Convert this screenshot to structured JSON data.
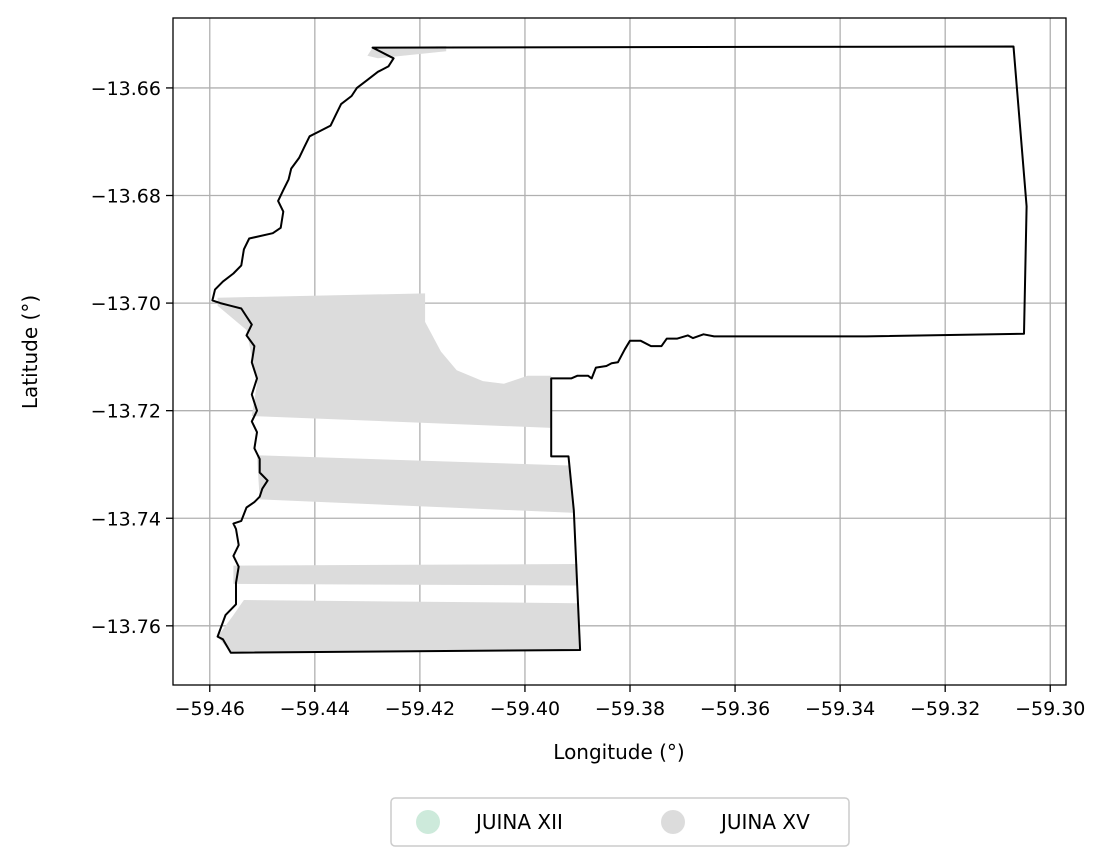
{
  "chart_data": {
    "type": "map",
    "xlabel": "Longitude (°)",
    "ylabel": "Latitude (°)",
    "xlim": [
      -59.467,
      -59.297
    ],
    "ylim": [
      -13.771,
      -13.647
    ],
    "x_ticks": [
      -59.46,
      -59.44,
      -59.42,
      -59.4,
      -59.38,
      -59.36,
      -59.34,
      -59.32,
      -59.3
    ],
    "x_tick_labels": [
      "−59.46",
      "−59.44",
      "−59.42",
      "−59.40",
      "−59.38",
      "−59.36",
      "−59.34",
      "−59.32",
      "−59.30"
    ],
    "y_ticks": [
      -13.66,
      -13.68,
      -13.7,
      -13.72,
      -13.74,
      -13.76
    ],
    "y_tick_labels": [
      "−13.66",
      "−13.68",
      "−13.70",
      "−13.72",
      "−13.74",
      "−13.76"
    ],
    "grid": true,
    "legend_position": "bottom-center",
    "legend": [
      {
        "label": "JUINA XII",
        "color": "#cdeadb"
      },
      {
        "label": "JUINA XV",
        "color": "#dcdcdc"
      }
    ],
    "boundary_color": "#000000",
    "boundary": [
      [
        -59.429,
        -13.6525
      ],
      [
        -59.307,
        -13.6523
      ],
      [
        -59.3045,
        -13.682
      ],
      [
        -59.305,
        -13.7057
      ],
      [
        -59.335,
        -13.7062
      ],
      [
        -59.364,
        -13.7062
      ],
      [
        -59.366,
        -13.7058
      ],
      [
        -59.368,
        -13.7065
      ],
      [
        -59.369,
        -13.706
      ],
      [
        -59.371,
        -13.7066
      ],
      [
        -59.373,
        -13.7066
      ],
      [
        -59.374,
        -13.708
      ],
      [
        -59.376,
        -13.708
      ],
      [
        -59.378,
        -13.707
      ],
      [
        -59.38,
        -13.707
      ],
      [
        -59.381,
        -13.7086
      ],
      [
        -59.3823,
        -13.711
      ],
      [
        -59.3835,
        -13.7112
      ],
      [
        -59.3845,
        -13.7117
      ],
      [
        -59.3865,
        -13.712
      ],
      [
        -59.3873,
        -13.714
      ],
      [
        -59.388,
        -13.7135
      ],
      [
        -59.39,
        -13.7135
      ],
      [
        -59.3912,
        -13.714
      ],
      [
        -59.393,
        -13.714
      ],
      [
        -59.395,
        -13.714
      ],
      [
        -59.395,
        -13.7285
      ],
      [
        -59.3917,
        -13.7285
      ],
      [
        -59.3907,
        -13.7385
      ],
      [
        -59.3895,
        -13.7645
      ],
      [
        -59.456,
        -13.765
      ],
      [
        -59.4575,
        -13.7625
      ],
      [
        -59.4585,
        -13.762
      ],
      [
        -59.457,
        -13.758
      ],
      [
        -59.455,
        -13.756
      ],
      [
        -59.455,
        -13.752
      ],
      [
        -59.4545,
        -13.749
      ],
      [
        -59.4555,
        -13.747
      ],
      [
        -59.4545,
        -13.745
      ],
      [
        -59.455,
        -13.742
      ],
      [
        -59.4555,
        -13.741
      ],
      [
        -59.454,
        -13.7405
      ],
      [
        -59.453,
        -13.738
      ],
      [
        -59.4515,
        -13.737
      ],
      [
        -59.4505,
        -13.736
      ],
      [
        -59.45,
        -13.7345
      ],
      [
        -59.449,
        -13.733
      ],
      [
        -59.4505,
        -13.7315
      ],
      [
        -59.4505,
        -13.729
      ],
      [
        -59.4515,
        -13.727
      ],
      [
        -59.451,
        -13.724
      ],
      [
        -59.452,
        -13.722
      ],
      [
        -59.451,
        -13.72
      ],
      [
        -59.452,
        -13.717
      ],
      [
        -59.451,
        -13.714
      ],
      [
        -59.452,
        -13.711
      ],
      [
        -59.4515,
        -13.708
      ],
      [
        -59.453,
        -13.706
      ],
      [
        -59.452,
        -13.704
      ],
      [
        -59.453,
        -13.7025
      ],
      [
        -59.454,
        -13.701
      ],
      [
        -59.456,
        -13.7005
      ],
      [
        -59.458,
        -13.7
      ],
      [
        -59.4595,
        -13.6995
      ],
      [
        -59.459,
        -13.6975
      ],
      [
        -59.4575,
        -13.696
      ],
      [
        -59.4555,
        -13.6945
      ],
      [
        -59.454,
        -13.693
      ],
      [
        -59.4535,
        -13.69
      ],
      [
        -59.4525,
        -13.688
      ],
      [
        -59.448,
        -13.687
      ],
      [
        -59.4465,
        -13.686
      ],
      [
        -59.446,
        -13.683
      ],
      [
        -59.447,
        -13.681
      ],
      [
        -59.446,
        -13.679
      ],
      [
        -59.445,
        -13.677
      ],
      [
        -59.4445,
        -13.675
      ],
      [
        -59.443,
        -13.673
      ],
      [
        -59.442,
        -13.671
      ],
      [
        -59.441,
        -13.669
      ],
      [
        -59.439,
        -13.668
      ],
      [
        -59.437,
        -13.667
      ],
      [
        -59.436,
        -13.665
      ],
      [
        -59.435,
        -13.663
      ],
      [
        -59.433,
        -13.6615
      ],
      [
        -59.432,
        -13.66
      ],
      [
        -59.43,
        -13.6585
      ],
      [
        -59.428,
        -13.657
      ],
      [
        -59.426,
        -13.656
      ],
      [
        -59.425,
        -13.6545
      ],
      [
        -59.426,
        -13.654
      ],
      [
        -59.429,
        -13.6525
      ]
    ],
    "series": [
      {
        "name": "JUINA XV",
        "color": "#dcdcdc",
        "polygons": [
          [
            [
              -59.429,
              -13.6525
            ],
            [
              -59.415,
              -13.6522
            ],
            [
              -59.415,
              -13.6532
            ],
            [
              -59.428,
              -13.6545
            ],
            [
              -59.43,
              -13.654
            ]
          ],
          [
            [
              -59.4585,
              -13.699
            ],
            [
              -59.419,
              -13.6982
            ],
            [
              -59.419,
              -13.7035
            ],
            [
              -59.416,
              -13.709
            ],
            [
              -59.413,
              -13.7125
            ],
            [
              -59.408,
              -13.7145
            ],
            [
              -59.404,
              -13.715
            ],
            [
              -59.3995,
              -13.7135
            ],
            [
              -59.395,
              -13.7135
            ],
            [
              -59.395,
              -13.7232
            ],
            [
              -59.452,
              -13.721
            ],
            [
              -59.451,
              -13.715
            ],
            [
              -59.453,
              -13.705
            ],
            [
              -59.4585,
              -13.7005
            ]
          ],
          [
            [
              -59.451,
              -13.7283
            ],
            [
              -59.3915,
              -13.7302
            ],
            [
              -59.3905,
              -13.739
            ],
            [
              -59.4505,
              -13.7365
            ]
          ],
          [
            [
              -59.4555,
              -13.7488
            ],
            [
              -59.39,
              -13.7485
            ],
            [
              -59.39,
              -13.7525
            ],
            [
              -59.4555,
              -13.7522
            ]
          ],
          [
            [
              -59.4535,
              -13.7552
            ],
            [
              -59.39,
              -13.7558
            ],
            [
              -59.3895,
              -13.7645
            ],
            [
              -59.456,
              -13.765
            ],
            [
              -59.4585,
              -13.762
            ],
            [
              -59.4555,
              -13.758
            ]
          ]
        ]
      }
    ]
  }
}
